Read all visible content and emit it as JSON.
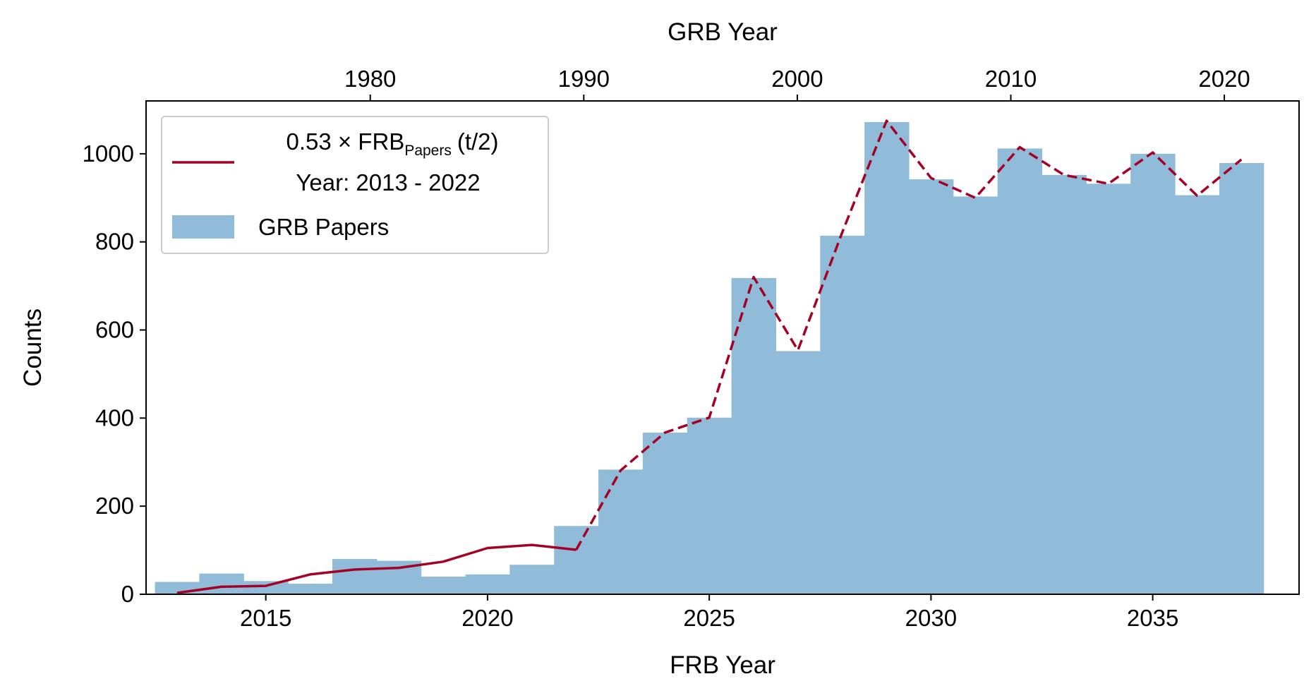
{
  "chart_data": {
    "type": "bar",
    "xlabel": "FRB Year",
    "ylabel": "Counts",
    "top_xlabel": "GRB Year",
    "xlim": [
      2012.3,
      2038.3
    ],
    "ylim": [
      0,
      1120
    ],
    "top_xlim": [
      1969.5,
      2023.5
    ],
    "x_ticks": [
      2015,
      2020,
      2025,
      2030,
      2035
    ],
    "y_ticks": [
      0,
      200,
      400,
      600,
      800,
      1000
    ],
    "top_x_ticks": [
      1980,
      1990,
      2000,
      2010,
      2020
    ],
    "grid": false,
    "legend_position": "top-left",
    "legend": {
      "line_label": "0.53 × FRB",
      "line_label_sub": "Papers",
      "line_label_suffix": "(t/2)",
      "line_label_line2": "Year: 2013 - 2022",
      "bar_label": "GRB Papers"
    },
    "bars": {
      "name": "GRB Papers",
      "color": "#91bcd9",
      "bin_width": 1.0,
      "x": [
        2013,
        2014,
        2015,
        2016,
        2017,
        2018,
        2019,
        2020,
        2021,
        2022,
        2023,
        2024,
        2025,
        2026,
        2027,
        2028,
        2029,
        2030,
        2031,
        2032,
        2033,
        2034,
        2035,
        2036,
        2037
      ],
      "values": [
        28,
        47,
        30,
        24,
        80,
        76,
        40,
        45,
        67,
        155,
        283,
        367,
        401,
        718,
        552,
        814,
        1072,
        942,
        903,
        1012,
        952,
        932,
        1000,
        906,
        979
      ]
    },
    "line": {
      "name": "0.53 × FRB Papers (t/2)",
      "color": "#a50026",
      "x": [
        2013,
        2014,
        2015,
        2016,
        2017,
        2018,
        2019,
        2020,
        2021,
        2022,
        2023,
        2024,
        2025,
        2026,
        2027,
        2028,
        2029,
        2030,
        2031,
        2032,
        2033,
        2034,
        2035,
        2036,
        2037
      ],
      "values": [
        3,
        17,
        19,
        45,
        56,
        60,
        74,
        105,
        112,
        101,
        281,
        367,
        401,
        720,
        554,
        822,
        1075,
        945,
        900,
        1015,
        952,
        932,
        1003,
        905,
        987
      ],
      "solid_until_index": 9
    }
  }
}
